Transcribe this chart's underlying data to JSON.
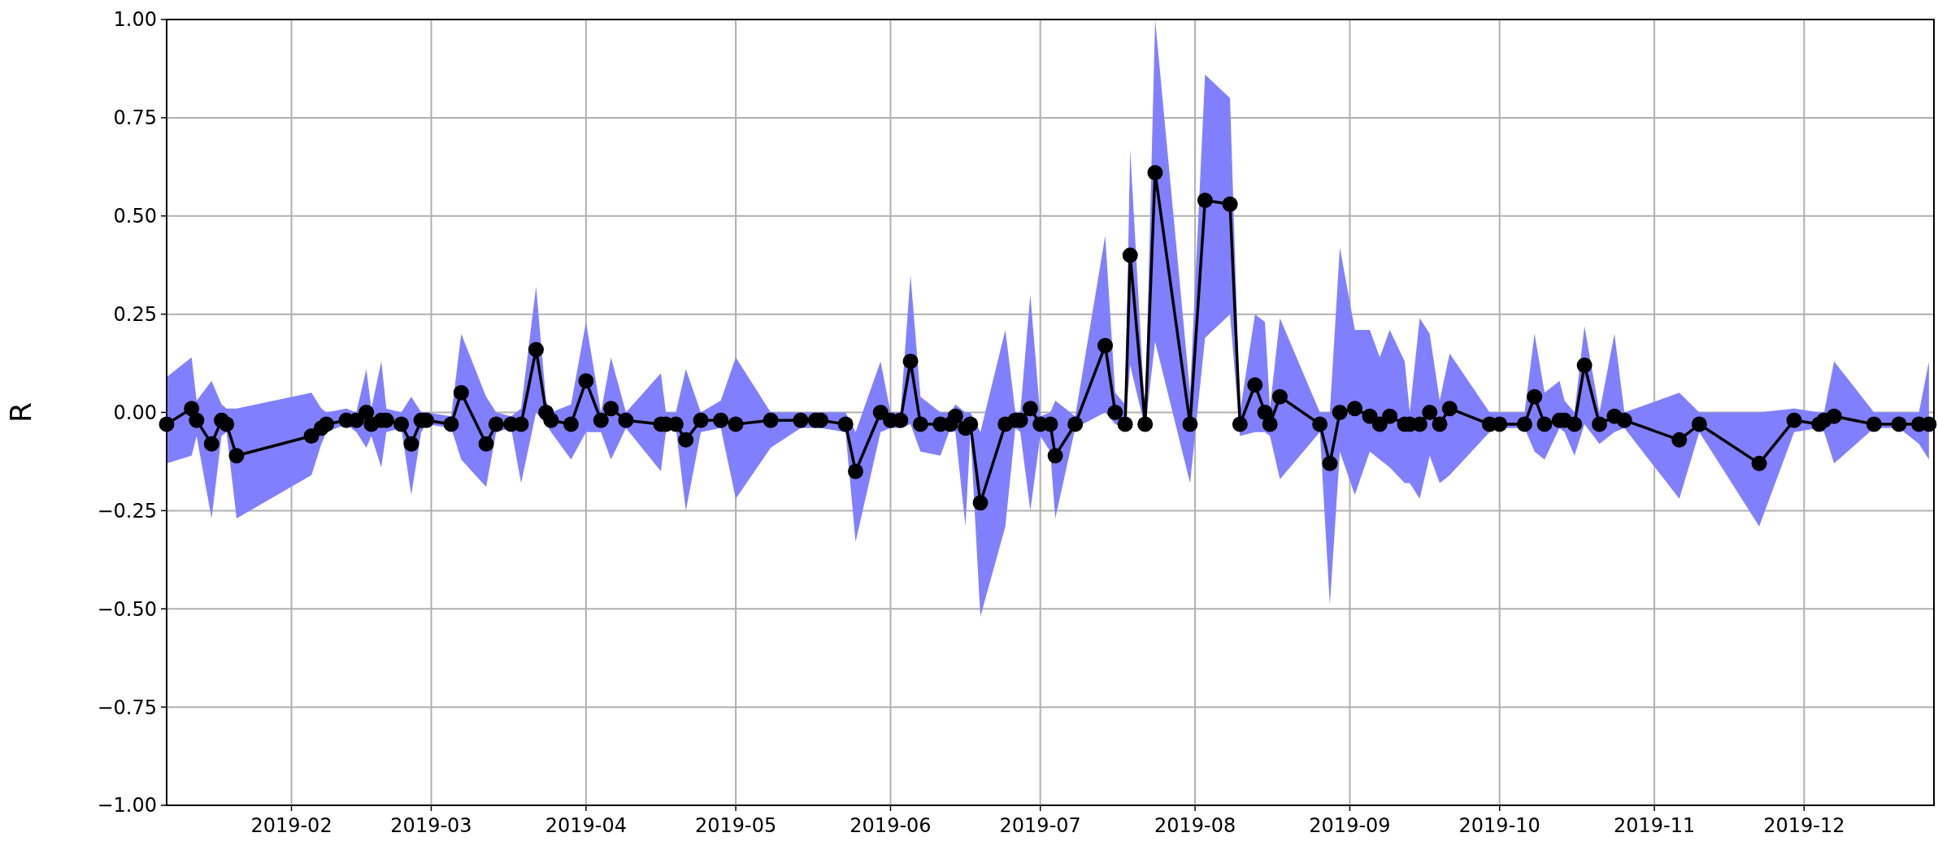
{
  "chart_data": {
    "type": "line",
    "ylabel": "R",
    "xlim": [
      "2019-01-07",
      "2019-12-27"
    ],
    "ylim": [
      -1,
      1
    ],
    "yticks": [
      {
        "value": -1,
        "label": "−1.00"
      },
      {
        "value": -0.75,
        "label": "−0.75"
      },
      {
        "value": -0.5,
        "label": "−0.50"
      },
      {
        "value": -0.25,
        "label": "−0.25"
      },
      {
        "value": 0,
        "label": "0.00"
      },
      {
        "value": 0.25,
        "label": "0.25"
      },
      {
        "value": 0.5,
        "label": "0.50"
      },
      {
        "value": 0.75,
        "label": "0.75"
      },
      {
        "value": 1,
        "label": "1.00"
      }
    ],
    "xticks": [
      {
        "value": "2019-02-01",
        "label": "2019-02"
      },
      {
        "value": "2019-03-01",
        "label": "2019-03"
      },
      {
        "value": "2019-04-01",
        "label": "2019-04"
      },
      {
        "value": "2019-05-01",
        "label": "2019-05"
      },
      {
        "value": "2019-06-01",
        "label": "2019-06"
      },
      {
        "value": "2019-07-01",
        "label": "2019-07"
      },
      {
        "value": "2019-08-01",
        "label": "2019-08"
      },
      {
        "value": "2019-09-01",
        "label": "2019-09"
      },
      {
        "value": "2019-10-01",
        "label": "2019-10"
      },
      {
        "value": "2019-11-01",
        "label": "2019-11"
      },
      {
        "value": "2019-12-01",
        "label": "2019-12"
      }
    ],
    "grid": true,
    "marker": "circle",
    "line_style": "solid",
    "series": [
      {
        "color": "#000000",
        "x": [
          "2019-01-07",
          "2019-01-12",
          "2019-01-13",
          "2019-01-16",
          "2019-01-18",
          "2019-01-19",
          "2019-01-21",
          "2019-02-05",
          "2019-02-07",
          "2019-02-08",
          "2019-02-12",
          "2019-02-14",
          "2019-02-16",
          "2019-02-17",
          "2019-02-19",
          "2019-02-20",
          "2019-02-23",
          "2019-02-25",
          "2019-02-27",
          "2019-02-28",
          "2019-03-05",
          "2019-03-07",
          "2019-03-12",
          "2019-03-14",
          "2019-03-17",
          "2019-03-19",
          "2019-03-22",
          "2019-03-24",
          "2019-03-25",
          "2019-03-29",
          "2019-04-01",
          "2019-04-04",
          "2019-04-06",
          "2019-04-09",
          "2019-04-16",
          "2019-04-17",
          "2019-04-19",
          "2019-04-21",
          "2019-04-24",
          "2019-04-28",
          "2019-05-01",
          "2019-05-08",
          "2019-05-14",
          "2019-05-17",
          "2019-05-18",
          "2019-05-23",
          "2019-05-25",
          "2019-05-30",
          "2019-06-01",
          "2019-06-03",
          "2019-06-05",
          "2019-06-07",
          "2019-06-11",
          "2019-06-13",
          "2019-06-14",
          "2019-06-16",
          "2019-06-17",
          "2019-06-19",
          "2019-06-24",
          "2019-06-26",
          "2019-06-27",
          "2019-06-29",
          "2019-07-01",
          "2019-07-03",
          "2019-07-04",
          "2019-07-08",
          "2019-07-14",
          "2019-07-16",
          "2019-07-18",
          "2019-07-19",
          "2019-07-22",
          "2019-07-24",
          "2019-07-31",
          "2019-08-03",
          "2019-08-08",
          "2019-08-10",
          "2019-08-13",
          "2019-08-15",
          "2019-08-16",
          "2019-08-18",
          "2019-08-26",
          "2019-08-28",
          "2019-08-30",
          "2019-09-02",
          "2019-09-05",
          "2019-09-07",
          "2019-09-09",
          "2019-09-12",
          "2019-09-13",
          "2019-09-15",
          "2019-09-17",
          "2019-09-19",
          "2019-09-21",
          "2019-09-29",
          "2019-10-01",
          "2019-10-06",
          "2019-10-08",
          "2019-10-10",
          "2019-10-13",
          "2019-10-14",
          "2019-10-16",
          "2019-10-18",
          "2019-10-21",
          "2019-10-24",
          "2019-10-26",
          "2019-11-06",
          "2019-11-10",
          "2019-11-22",
          "2019-11-29",
          "2019-12-04",
          "2019-12-05",
          "2019-12-07",
          "2019-12-15",
          "2019-12-20",
          "2019-12-24",
          "2019-12-26"
        ],
        "values": [
          -0.03,
          0.01,
          -0.02,
          -0.08,
          -0.02,
          -0.03,
          -0.11,
          -0.06,
          -0.04,
          -0.03,
          -0.02,
          -0.02,
          0.0,
          -0.03,
          -0.02,
          -0.02,
          -0.03,
          -0.08,
          -0.02,
          -0.02,
          -0.03,
          0.05,
          -0.08,
          -0.03,
          -0.03,
          -0.03,
          0.16,
          0.0,
          -0.02,
          -0.03,
          0.08,
          -0.02,
          0.01,
          -0.02,
          -0.03,
          -0.03,
          -0.03,
          -0.07,
          -0.02,
          -0.02,
          -0.03,
          -0.02,
          -0.02,
          -0.02,
          -0.02,
          -0.03,
          -0.15,
          0.0,
          -0.02,
          -0.02,
          0.13,
          -0.03,
          -0.03,
          -0.03,
          -0.01,
          -0.04,
          -0.03,
          -0.23,
          -0.03,
          -0.02,
          -0.02,
          0.01,
          -0.03,
          -0.03,
          -0.11,
          -0.03,
          0.17,
          0.0,
          -0.03,
          0.4,
          -0.03,
          0.61,
          -0.03,
          0.54,
          0.53,
          -0.03,
          0.07,
          0.0,
          -0.03,
          0.04,
          -0.03,
          -0.13,
          0.0,
          0.01,
          -0.01,
          -0.03,
          -0.01,
          -0.03,
          -0.03,
          -0.03,
          0.0,
          -0.03,
          0.01,
          -0.03,
          -0.03,
          -0.03,
          0.04,
          -0.03,
          -0.02,
          -0.02,
          -0.03,
          0.12,
          -0.03,
          -0.01,
          -0.02,
          -0.07,
          -0.03,
          -0.13,
          -0.02,
          -0.03,
          -0.02,
          -0.01,
          -0.03,
          -0.03,
          -0.03,
          -0.03
        ],
        "lower": [
          -0.13,
          -0.11,
          -0.06,
          -0.27,
          -0.06,
          -0.05,
          -0.27,
          -0.16,
          -0.08,
          -0.05,
          -0.03,
          -0.05,
          -0.09,
          -0.06,
          -0.14,
          -0.05,
          -0.04,
          -0.21,
          -0.05,
          -0.03,
          -0.04,
          -0.12,
          -0.19,
          -0.05,
          -0.04,
          -0.18,
          0.0,
          -0.03,
          -0.05,
          -0.12,
          -0.05,
          -0.05,
          -0.12,
          -0.04,
          -0.15,
          -0.05,
          -0.04,
          -0.25,
          -0.05,
          -0.04,
          -0.22,
          -0.09,
          -0.04,
          -0.04,
          -0.04,
          -0.05,
          -0.33,
          -0.05,
          -0.04,
          -0.04,
          -0.03,
          -0.1,
          -0.11,
          -0.04,
          -0.05,
          -0.29,
          -0.05,
          -0.52,
          -0.29,
          -0.04,
          -0.05,
          -0.25,
          -0.06,
          -0.1,
          -0.27,
          -0.04,
          0.0,
          -0.03,
          -0.04,
          0.12,
          -0.04,
          0.18,
          -0.18,
          0.19,
          0.25,
          -0.06,
          -0.05,
          -0.05,
          -0.06,
          -0.17,
          -0.05,
          -0.49,
          -0.1,
          -0.21,
          -0.1,
          -0.12,
          -0.14,
          -0.18,
          -0.18,
          -0.22,
          -0.11,
          -0.18,
          -0.16,
          -0.05,
          -0.04,
          -0.04,
          -0.1,
          -0.12,
          -0.04,
          -0.05,
          -0.11,
          -0.03,
          -0.08,
          -0.05,
          -0.04,
          -0.22,
          -0.05,
          -0.29,
          -0.05,
          -0.04,
          -0.05,
          -0.13,
          -0.04,
          -0.04,
          -0.08,
          -0.12
        ],
        "upper": [
          0.09,
          0.14,
          0.03,
          0.08,
          0.02,
          0.01,
          0.01,
          0.05,
          0.01,
          0.0,
          0.01,
          0.0,
          0.11,
          0.01,
          0.13,
          0.01,
          0.0,
          0.04,
          0.0,
          0.0,
          -0.01,
          0.2,
          0.04,
          0.0,
          -0.01,
          0.01,
          0.32,
          0.03,
          0.0,
          0.02,
          0.23,
          0.0,
          0.14,
          0.0,
          0.1,
          0.0,
          0.0,
          0.11,
          0.0,
          0.03,
          0.14,
          0.0,
          0.0,
          0.0,
          0.0,
          0.0,
          -0.05,
          0.13,
          0.0,
          0.0,
          0.35,
          0.04,
          0.0,
          0.0,
          0.02,
          0.0,
          0.0,
          -0.05,
          0.21,
          0.0,
          0.0,
          0.3,
          -0.01,
          0.0,
          0.03,
          -0.01,
          0.45,
          0.05,
          0.02,
          0.67,
          -0.01,
          1.0,
          0.05,
          0.86,
          0.8,
          0.0,
          0.25,
          0.23,
          0.01,
          0.24,
          0.0,
          0.0,
          0.42,
          0.21,
          0.21,
          0.14,
          0.21,
          0.13,
          0.0,
          0.24,
          0.2,
          0.03,
          0.15,
          0.0,
          0.0,
          0.0,
          0.2,
          0.05,
          0.08,
          0.03,
          0.0,
          0.22,
          0.0,
          0.2,
          0.0,
          0.05,
          0.0,
          0.0,
          0.01,
          0.0,
          0.0,
          0.13,
          0.0,
          0.0,
          0.0,
          0.13
        ]
      }
    ]
  }
}
